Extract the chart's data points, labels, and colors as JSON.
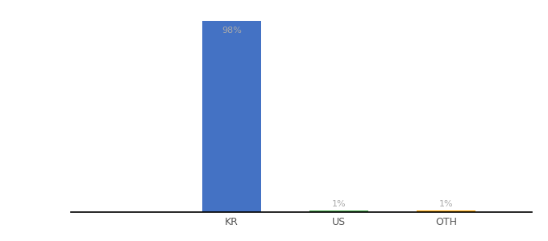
{
  "categories": [
    "KR",
    "US",
    "OTH"
  ],
  "values": [
    98,
    1,
    1
  ],
  "bar_colors": [
    "#4472c4",
    "#4caf50",
    "#ffa500"
  ],
  "labels": [
    "98%",
    "1%",
    "1%"
  ],
  "ylim": [
    0,
    105
  ],
  "background_color": "#ffffff",
  "label_color": "#aaaaaa",
  "label_fontsize": 8,
  "tick_fontsize": 9,
  "bar_width": 0.55,
  "figwidth": 6.8,
  "figheight": 3.0,
  "dpi": 100
}
